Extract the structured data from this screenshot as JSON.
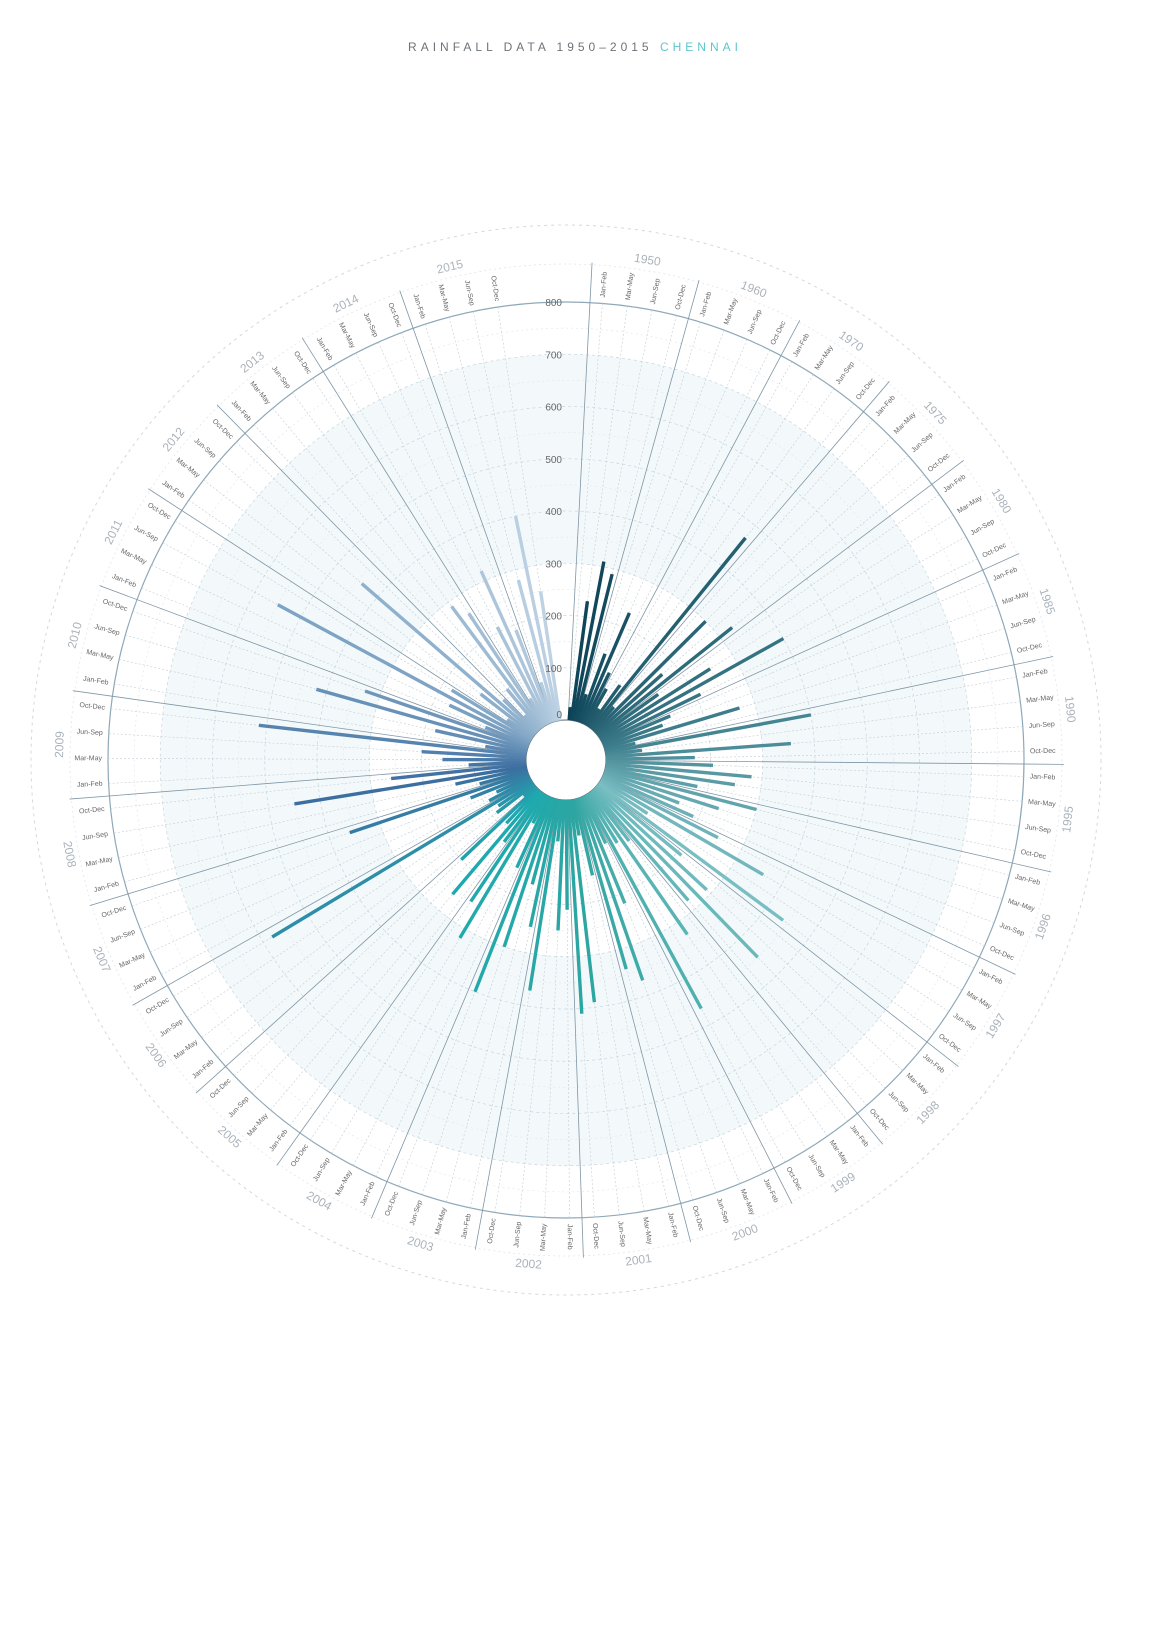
{
  "title": {
    "main": "RAINFALL DATA 1950–2015",
    "city": "CHENNAI"
  },
  "chart_data": {
    "type": "radial-bar",
    "title": "RAINFALL DATA 1950–2015 CHENNAI",
    "seasons": [
      "Jan-Feb",
      "Mar-May",
      "Jun-Sep",
      "Oct-Dec"
    ],
    "r_ticks": [
      0,
      100,
      200,
      300,
      400,
      500,
      600,
      700,
      800
    ],
    "rlim": [
      0,
      800
    ],
    "years": [
      {
        "year": "1950",
        "values": [
          25,
          230,
          310,
          290
        ]
      },
      {
        "year": "1960",
        "values": [
          55,
          140,
          230,
          110
        ]
      },
      {
        "year": "1970",
        "values": [
          80,
          40,
          100,
          470
        ]
      },
      {
        "year": "1975",
        "values": [
          60,
          300,
          170,
          330
        ]
      },
      {
        "year": "1980",
        "values": [
          140,
          250,
          400,
          210
        ]
      },
      {
        "year": "1985",
        "values": [
          140,
          120,
          270,
          60
        ]
      },
      {
        "year": "1990",
        "values": [
          400,
          70,
          355,
          170
        ]
      },
      {
        "year": "1995",
        "values": [
          205,
          280,
          250,
          180
        ]
      },
      {
        "year": "1996",
        "values": [
          300,
          230,
          155,
          190
        ]
      },
      {
        "year": "1997",
        "values": [
          250,
          360,
          110,
          440
        ]
      },
      {
        "year": "1998",
        "values": [
          210,
          290,
          450,
          280
        ]
      },
      {
        "year": "1999",
        "values": [
          120,
          330,
          110,
          465
        ]
      },
      {
        "year": "2000",
        "values": [
          100,
          220,
          370,
          340
        ]
      },
      {
        "year": "2001",
        "values": [
          150,
          70,
          390,
          410
        ]
      },
      {
        "year": "2002",
        "values": [
          210,
          250,
          80,
          370
        ]
      },
      {
        "year": "2003",
        "values": [
          250,
          170,
          300,
          400
        ]
      },
      {
        "year": "2004",
        "values": [
          150,
          60,
          320,
          250
        ]
      },
      {
        "year": "2005",
        "values": [
          120,
          260,
          90,
          200
        ]
      },
      {
        "year": "2006",
        "values": [
          30,
          90,
          80,
          580
        ]
      },
      {
        "year": "2007",
        "values": [
          90,
          70,
          120,
          360
        ]
      },
      {
        "year": "2008",
        "values": [
          95,
          140,
          450,
          260
        ]
      },
      {
        "year": "2009",
        "values": [
          110,
          160,
          200,
          515
        ]
      },
      {
        "year": "2010",
        "values": [
          80,
          180,
          420,
          330
        ]
      },
      {
        "year": "2011",
        "values": [
          90,
          170,
          550,
          180
        ]
      },
      {
        "year": "2012",
        "values": [
          60,
          130,
          440,
          90
        ]
      },
      {
        "year": "2013",
        "values": [
          40,
          100,
          290,
          260
        ]
      },
      {
        "year": "2014",
        "values": [
          60,
          210,
          320,
          190
        ]
      },
      {
        "year": "2015",
        "values": [
          80,
          280,
          400,
          250
        ]
      }
    ]
  }
}
